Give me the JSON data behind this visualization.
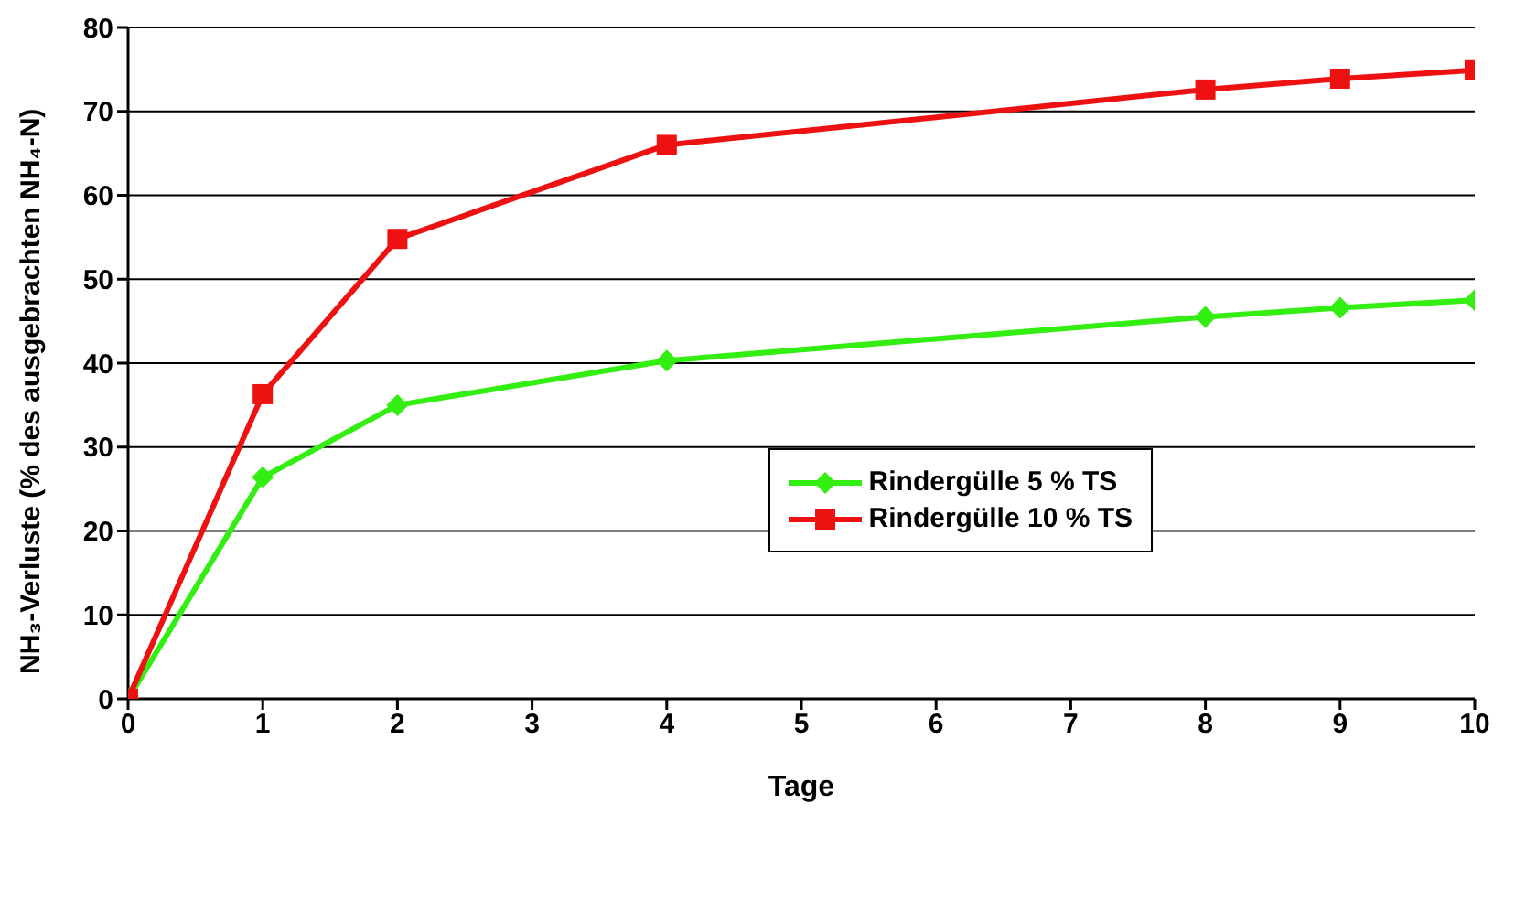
{
  "chart_data": {
    "type": "line",
    "xlabel": "Tage",
    "ylabel": "NH₃-Verluste (% des ausgebrachten NH₄-N)",
    "x": [
      0,
      1,
      2,
      4,
      8,
      9,
      10
    ],
    "series": [
      {
        "name": "Rindergülle 5 % TS",
        "color": "#33ee11",
        "marker": "diamond",
        "values": [
          0,
          26.4,
          35,
          40.3,
          45.5,
          46.6,
          47.5
        ]
      },
      {
        "name": "Rindergülle 10 % TS",
        "color": "#ee1111",
        "marker": "square",
        "values": [
          0,
          36.3,
          54.8,
          66,
          72.6,
          73.9,
          74.9
        ]
      }
    ],
    "xlim": [
      0,
      10
    ],
    "xticks": [
      0,
      1,
      2,
      3,
      4,
      5,
      6,
      7,
      8,
      9,
      10
    ],
    "ylim": [
      0,
      80
    ],
    "yticks": [
      0,
      10,
      20,
      30,
      40,
      50,
      60,
      70,
      80
    ],
    "grid": "y",
    "legend": "right",
    "line_style": "solid"
  }
}
